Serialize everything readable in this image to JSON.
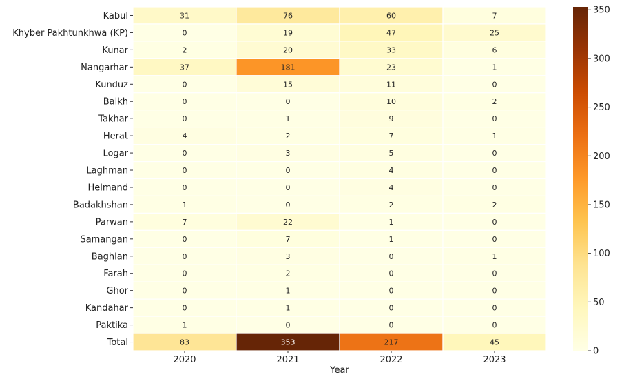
{
  "chart_data": {
    "type": "heatmap",
    "xlabel": "Year",
    "ylabel": "",
    "columns": [
      "2020",
      "2021",
      "2022",
      "2023"
    ],
    "rows": [
      "Kabul",
      "Khyber Pakhtunkhwa (KP)",
      "Kunar",
      "Nangarhar",
      "Kunduz",
      "Balkh",
      "Takhar",
      "Herat",
      "Logar",
      "Laghman",
      "Helmand ",
      "Badakhshan",
      "Parwan",
      "Samangan",
      "Baghlan",
      "Farah",
      "Ghor",
      "Kandahar",
      "Paktika",
      "Total"
    ],
    "values": [
      [
        31,
        76,
        60,
        7
      ],
      [
        0,
        19,
        47,
        25
      ],
      [
        2,
        20,
        33,
        6
      ],
      [
        37,
        181,
        23,
        1
      ],
      [
        0,
        15,
        11,
        0
      ],
      [
        0,
        0,
        10,
        2
      ],
      [
        0,
        1,
        9,
        0
      ],
      [
        4,
        2,
        7,
        1
      ],
      [
        0,
        3,
        5,
        0
      ],
      [
        0,
        0,
        4,
        0
      ],
      [
        0,
        0,
        4,
        0
      ],
      [
        1,
        0,
        2,
        2
      ],
      [
        7,
        22,
        1,
        0
      ],
      [
        0,
        7,
        1,
        0
      ],
      [
        0,
        3,
        0,
        1
      ],
      [
        0,
        2,
        0,
        0
      ],
      [
        0,
        1,
        0,
        0
      ],
      [
        0,
        1,
        0,
        0
      ],
      [
        1,
        0,
        0,
        0
      ],
      [
        83,
        353,
        217,
        45
      ]
    ],
    "colorbar": {
      "colormap": "YlOrBr",
      "range": [
        0,
        353
      ],
      "ticks": [
        "0",
        "50",
        "100",
        "150",
        "200",
        "250",
        "300",
        "350"
      ]
    }
  }
}
